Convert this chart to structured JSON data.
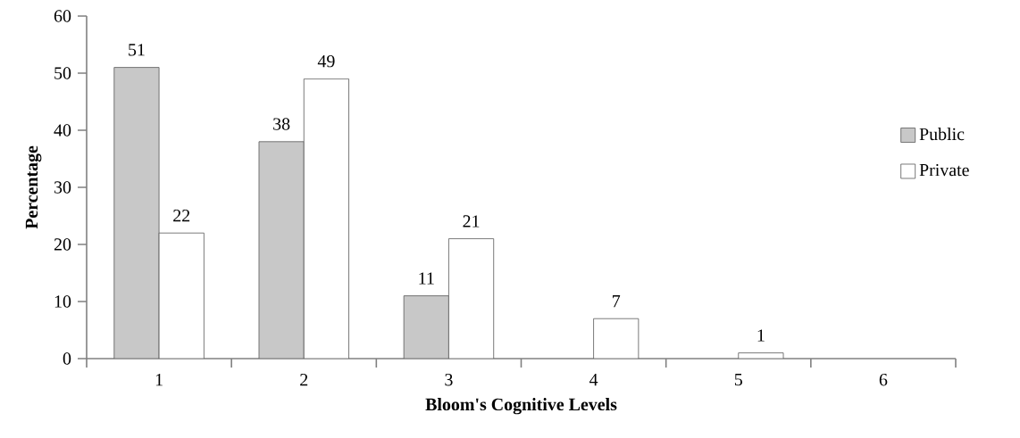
{
  "chart_data": {
    "type": "bar",
    "xlabel": "Bloom's Cognitive Levels",
    "ylabel": "Percentage",
    "categories": [
      "1",
      "2",
      "3",
      "4",
      "5",
      "6"
    ],
    "series": [
      {
        "name": "Public",
        "color": "#c8c8c8",
        "values": [
          51,
          38,
          11,
          null,
          null,
          null
        ]
      },
      {
        "name": "Private",
        "color": "#ffffff",
        "values": [
          22,
          49,
          21,
          7,
          1,
          null
        ]
      }
    ],
    "ylim": [
      0,
      60
    ],
    "yticks": [
      0,
      10,
      20,
      30,
      40,
      50,
      60
    ],
    "grid": false,
    "legend": "right",
    "data_labels": true
  }
}
